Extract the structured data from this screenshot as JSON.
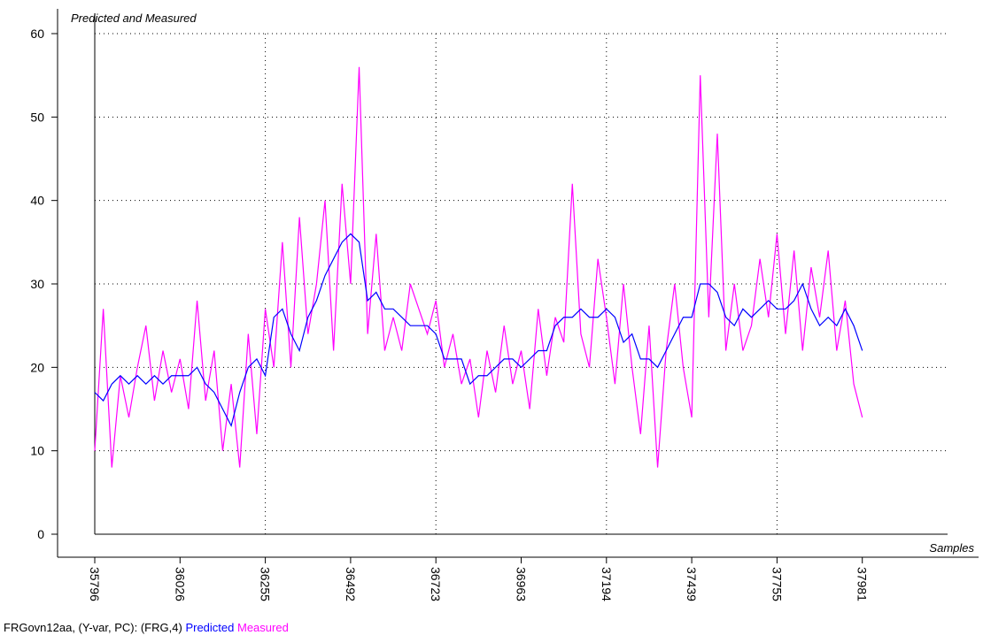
{
  "chart_data": {
    "type": "line",
    "title": "Predicted and Measured",
    "x_label": "Samples",
    "footer": "FRGovn12aa, (Y-var, PC): (FRG,4)",
    "x": [
      0,
      10,
      20,
      30,
      40,
      50,
      60,
      70,
      80,
      90,
      100,
      110,
      120,
      130,
      140,
      150,
      160,
      170,
      180,
      190,
      200,
      210,
      220,
      230,
      240,
      250,
      260,
      270,
      280,
      290,
      300,
      310,
      320,
      330,
      340,
      350,
      360,
      370,
      380,
      390,
      400,
      410,
      420,
      430,
      440,
      450,
      460,
      470,
      480,
      490,
      500,
      510,
      520,
      530,
      540,
      550,
      560,
      570,
      580,
      590,
      600,
      610,
      620,
      630,
      640,
      650,
      660,
      670,
      680,
      690,
      700,
      710,
      720,
      730,
      740,
      750,
      760,
      770,
      780,
      790,
      800,
      810,
      820,
      830,
      840,
      850,
      860,
      870,
      880,
      890,
      900
    ],
    "series": [
      {
        "name": "Predicted",
        "color": "#0000ff",
        "values": [
          17,
          16,
          18,
          19,
          18,
          19,
          18,
          19,
          18,
          19,
          19,
          19,
          20,
          18,
          17,
          15,
          13,
          17,
          20,
          21,
          19,
          26,
          27,
          24,
          22,
          26,
          28,
          31,
          33,
          35,
          36,
          35,
          28,
          29,
          27,
          27,
          26,
          25,
          25,
          25,
          24,
          21,
          21,
          21,
          18,
          19,
          19,
          20,
          21,
          21,
          20,
          21,
          22,
          22,
          25,
          26,
          26,
          27,
          26,
          26,
          27,
          26,
          23,
          24,
          21,
          21,
          20,
          22,
          24,
          26,
          26,
          30,
          30,
          29,
          26,
          25,
          27,
          26,
          27,
          28,
          27,
          27,
          28,
          30,
          27,
          25,
          26,
          25,
          27,
          25,
          22
        ]
      },
      {
        "name": "Measured",
        "color": "#ff00ff",
        "values": [
          10,
          27,
          8,
          19,
          14,
          20,
          25,
          16,
          22,
          17,
          21,
          15,
          28,
          16,
          22,
          10,
          18,
          8,
          24,
          12,
          27,
          20,
          35,
          20,
          38,
          24,
          30,
          40,
          22,
          42,
          30,
          56,
          24,
          36,
          22,
          26,
          22,
          30,
          27,
          24,
          28,
          20,
          24,
          18,
          21,
          14,
          22,
          17,
          25,
          18,
          22,
          15,
          27,
          19,
          26,
          23,
          42,
          24,
          20,
          33,
          26,
          18,
          30,
          20,
          12,
          25,
          8,
          22,
          30,
          20,
          14,
          55,
          26,
          48,
          22,
          30,
          22,
          25,
          33,
          26,
          36,
          24,
          34,
          22,
          32,
          26,
          34,
          22,
          28,
          18,
          14
        ]
      }
    ],
    "xlim": [
      0,
      1000
    ],
    "xticks": [
      {
        "value": 0,
        "label": "35796"
      },
      {
        "value": 100,
        "label": "36026"
      },
      {
        "value": 200,
        "label": "36255"
      },
      {
        "value": 300,
        "label": "36492"
      },
      {
        "value": 400,
        "label": "36723"
      },
      {
        "value": 500,
        "label": "36963"
      },
      {
        "value": 600,
        "label": "37194"
      },
      {
        "value": 700,
        "label": "37439"
      },
      {
        "value": 800,
        "label": "37755"
      },
      {
        "value": 900,
        "label": "37981"
      }
    ],
    "ylim": [
      0,
      60
    ],
    "yticks": [
      0,
      10,
      20,
      30,
      40,
      50,
      60
    ],
    "grid": true
  }
}
